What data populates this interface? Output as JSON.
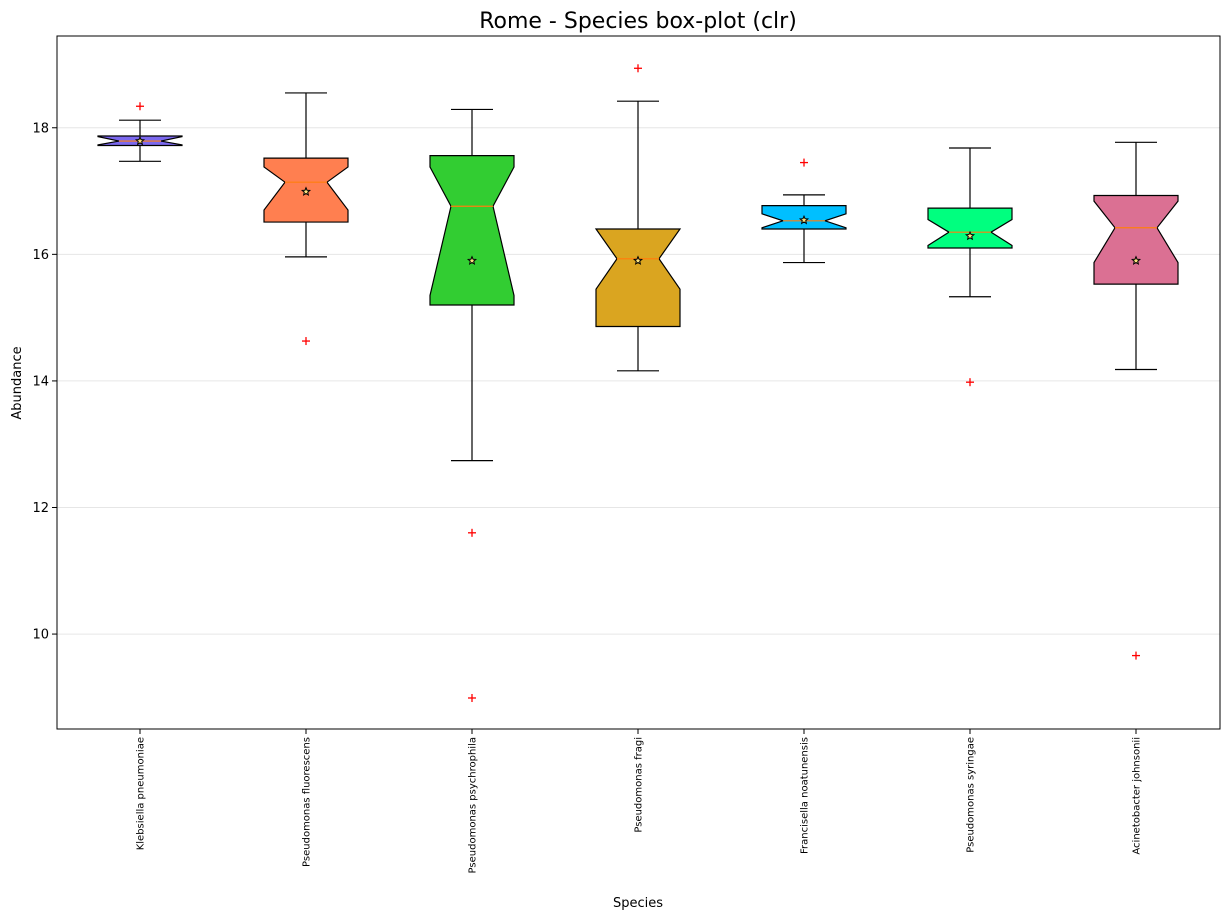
{
  "chart_data": {
    "type": "boxplot",
    "title": "Rome - Species box-plot (clr)",
    "xlabel": "Species",
    "ylabel": "Abundance",
    "ylim": [
      8.5,
      19.45
    ],
    "yticks": [
      10,
      12,
      14,
      16,
      18
    ],
    "grid": "horizontal",
    "notched": true,
    "categories": [
      "Klebsiella pneumoniae",
      "Pseudomonas fluorescens",
      "Pseudomonas psychrophila",
      "Pseudomonas fragi",
      "Francisella noatunensis",
      "Pseudomonas syringae",
      "Acinetobacter johnsonii"
    ],
    "boxes": [
      {
        "color": "#7b68ee",
        "whisker_low": 17.47,
        "q1": 17.72,
        "median": 17.79,
        "q3": 17.87,
        "whisker_high": 18.12,
        "mean": 17.79,
        "notch_low": 17.73,
        "notch_high": 17.86,
        "outliers": [
          18.34
        ]
      },
      {
        "color": "#ff7f50",
        "whisker_low": 15.96,
        "q1": 16.51,
        "median": 17.14,
        "q3": 17.52,
        "whisker_high": 18.55,
        "mean": 16.99,
        "notch_low": 16.7,
        "notch_high": 17.38,
        "outliers": [
          14.63
        ]
      },
      {
        "color": "#32cd32",
        "whisker_low": 12.74,
        "q1": 15.2,
        "median": 16.76,
        "q3": 17.56,
        "whisker_high": 18.29,
        "mean": 15.9,
        "notch_low": 15.35,
        "notch_high": 17.38,
        "outliers": [
          11.6,
          8.99
        ]
      },
      {
        "color": "#daa520",
        "whisker_low": 14.16,
        "q1": 14.86,
        "median": 15.93,
        "q3": 16.4,
        "whisker_high": 18.42,
        "mean": 15.9,
        "notch_low": 15.45,
        "notch_high": 16.4,
        "outliers": [
          18.94
        ]
      },
      {
        "color": "#00bfff",
        "whisker_low": 15.87,
        "q1": 16.4,
        "median": 16.53,
        "q3": 16.77,
        "whisker_high": 16.94,
        "mean": 16.54,
        "notch_low": 16.42,
        "notch_high": 16.64,
        "outliers": [
          17.45
        ]
      },
      {
        "color": "#00ff7f",
        "whisker_low": 15.33,
        "q1": 16.1,
        "median": 16.35,
        "q3": 16.73,
        "whisker_high": 17.68,
        "mean": 16.29,
        "notch_low": 16.14,
        "notch_high": 16.55,
        "outliers": [
          13.98
        ]
      },
      {
        "color": "#db7093",
        "whisker_low": 14.18,
        "q1": 15.53,
        "median": 16.42,
        "q3": 16.93,
        "whisker_high": 17.77,
        "mean": 15.9,
        "notch_low": 15.87,
        "notch_high": 16.84,
        "outliers": [
          9.66
        ]
      }
    ],
    "outlier_color": "#ff0000",
    "median_color": "#ff7f0e"
  }
}
